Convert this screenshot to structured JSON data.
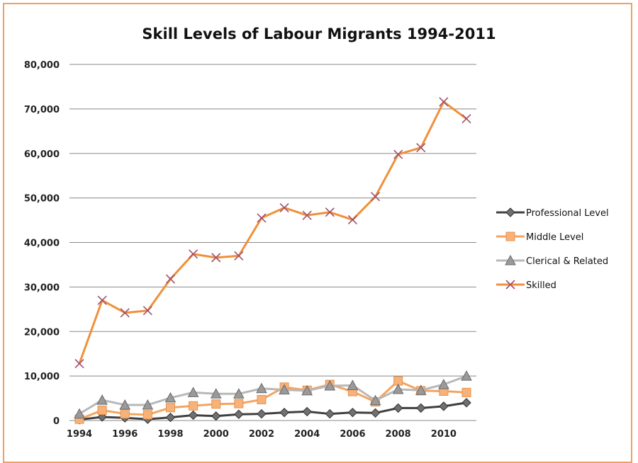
{
  "chart_data": {
    "type": "line",
    "title": "Skill Levels of Labour Migrants 1994-2011",
    "xlabel": "",
    "ylabel": "",
    "x": [
      1994,
      1995,
      1996,
      1997,
      1998,
      1999,
      2000,
      2001,
      2002,
      2003,
      2004,
      2005,
      2006,
      2007,
      2008,
      2009,
      2010,
      2011
    ],
    "x_ticks": [
      1994,
      1996,
      1998,
      2000,
      2002,
      2004,
      2006,
      2008,
      2010
    ],
    "xlim": [
      1994,
      2011
    ],
    "ylim": [
      0,
      80000
    ],
    "y_ticks": [
      "0",
      "10,000",
      "20,000",
      "30,000",
      "40,000",
      "50,000",
      "60,000",
      "70,000",
      "80,000"
    ],
    "y_tick_values": [
      0,
      10000,
      20000,
      30000,
      40000,
      50000,
      60000,
      70000,
      80000
    ],
    "grid": true,
    "legend_position": "right",
    "series": [
      {
        "name": "Professional Level",
        "color": "#404040",
        "marker": "diamond",
        "values": [
          200,
          800,
          600,
          300,
          700,
          1200,
          1000,
          1400,
          1500,
          1800,
          2000,
          1500,
          1800,
          1700,
          2800,
          2800,
          3200,
          4000
        ]
      },
      {
        "name": "Middle Level",
        "color": "#f4a460",
        "marker": "square",
        "values": [
          300,
          2300,
          1500,
          1300,
          2900,
          3300,
          3700,
          3800,
          4700,
          7500,
          6800,
          8100,
          6500,
          4200,
          8900,
          6700,
          6600,
          6300
        ]
      },
      {
        "name": "Clerical & Related",
        "color": "#b8b8b8",
        "marker": "triangle",
        "values": [
          1500,
          4600,
          3500,
          3500,
          5100,
          6300,
          6000,
          6000,
          7200,
          6900,
          6700,
          7800,
          7900,
          4500,
          7000,
          6800,
          8100,
          10000
        ]
      },
      {
        "name": "Skilled",
        "color": "#f0903a",
        "marker": "x",
        "values": [
          12800,
          27000,
          24200,
          24700,
          31800,
          37400,
          36600,
          37000,
          45500,
          47800,
          46100,
          46800,
          45100,
          50300,
          59800,
          61300,
          71600,
          67800
        ]
      }
    ]
  }
}
